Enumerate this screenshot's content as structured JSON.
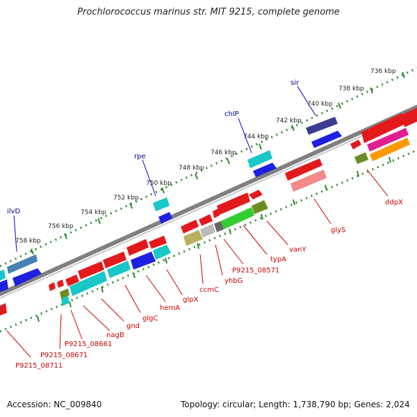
{
  "title": "Prochlorococcus marinus str. MIT 9215, complete genome",
  "footer": {
    "accession": "Accession: NC_009840",
    "topology": "Topology: circular; Length: 1,738,790 bp; Genes: 2,024"
  },
  "scale_labels": [
    "736 kbp",
    "738 kbp",
    "740 kbp",
    "742 kbp",
    "744 kbp",
    "746 kbp",
    "748 kbp",
    "750 kbp",
    "752 kbp",
    "754 kbp",
    "756 kbp",
    "758 kbp"
  ],
  "top_gene_labels": [
    "sir",
    "chlP",
    "rpe",
    "ilvD"
  ],
  "bottom_gene_labels": [
    "ddpX",
    "glyS",
    "vanY",
    "typA",
    "P9215_08571",
    "yhbG",
    "ccmC",
    "glpX",
    "hemA",
    "glgC",
    "gnd",
    "nagB",
    "P9215_08661",
    "P9215_08671",
    "P9215_08711"
  ],
  "colors": {
    "red": "#e31a1c",
    "blue": "#1f1fe0",
    "cyan": "#18c7c7",
    "navy": "#3b3b8f",
    "green": "#33cc33",
    "olive": "#8c8c2e",
    "khaki": "#b8b060",
    "pink": "#f28a8a",
    "magenta": "#e0208f",
    "orange": "#ff9900",
    "gray": "#999999",
    "steel": "#4682b4",
    "tick_green": "#2e8b2e",
    "backbone": "#808080"
  }
}
